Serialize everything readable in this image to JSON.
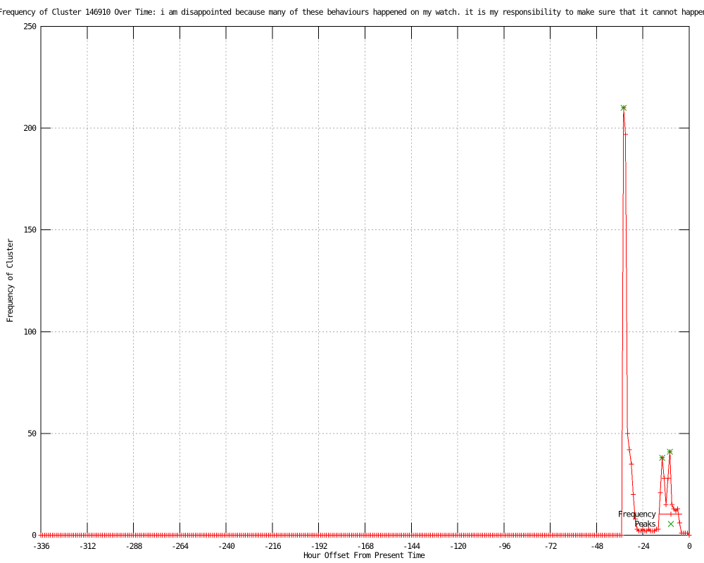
{
  "colors": {
    "background": "#ffffff",
    "border": "#000000",
    "grid": "#aaaaaa",
    "text": "#000000",
    "frequency_line": "#ff0000",
    "peaks_marker": "#00a000"
  },
  "chart_data": {
    "type": "line",
    "title": "Frequency of Cluster 146910 Over Time: i am disappointed because many of these behaviours happened on my watch. it is my responsibility to make sure that it cannot happen",
    "xlabel": "Hour Offset From Present Time",
    "ylabel": "Frequency of Cluster",
    "xlim": [
      -336,
      0
    ],
    "ylim": [
      0,
      250
    ],
    "xticks": [
      -336,
      -312,
      -288,
      -264,
      -240,
      -216,
      -192,
      -168,
      -144,
      -120,
      -96,
      -72,
      -48,
      -24,
      0
    ],
    "yticks": [
      0,
      50,
      100,
      150,
      200,
      250
    ],
    "grid": true,
    "legend_position": "bottom-right-inside",
    "x_unit": "hour",
    "series": [
      {
        "name": "Frequency",
        "color": "#ff0000",
        "style": "linespoints",
        "marker": "plus",
        "x_start": -336,
        "x_end": 0,
        "x_step": 1,
        "default_value": 0,
        "nonzero_values": {
          "-34": 210,
          "-33": 197,
          "-32": 50,
          "-31": 42,
          "-30": 35,
          "-29": 20,
          "-28": 8,
          "-27": 3,
          "-26": 2,
          "-25": 2,
          "-24": 3,
          "-23": 2,
          "-22": 2,
          "-21": 3,
          "-20": 2,
          "-19": 2,
          "-18": 2,
          "-17": 3,
          "-16": 3,
          "-15": 21,
          "-14": 38,
          "-13": 28,
          "-12": 15,
          "-11": 28,
          "-10": 41,
          "-9": 15,
          "-8": 13,
          "-7": 12,
          "-6": 13,
          "-5": 6,
          "-4": 1,
          "-3": 1,
          "-2": 1,
          "-1": 1,
          "0": 0
        }
      },
      {
        "name": "Peaks",
        "color": "#00a000",
        "style": "points",
        "marker": "cross",
        "points": [
          [
            -34,
            210
          ],
          [
            -14,
            38
          ],
          [
            -10,
            41
          ]
        ]
      }
    ]
  }
}
